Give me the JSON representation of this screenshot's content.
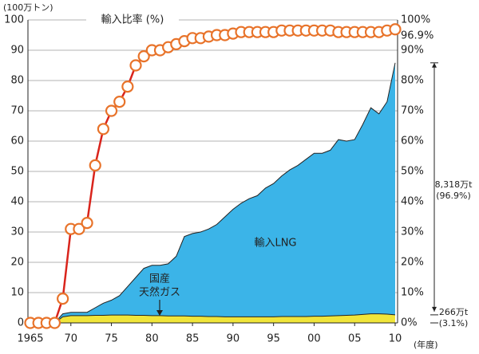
{
  "chart_data": {
    "type": "stacked-area-line",
    "y_unit": "(100万トン)",
    "x_unit": "(年度)",
    "x": [
      1965,
      1966,
      1967,
      1968,
      1969,
      1970,
      1971,
      1972,
      1973,
      1974,
      1975,
      1976,
      1977,
      1978,
      1979,
      1980,
      1981,
      1982,
      1983,
      1984,
      1985,
      1986,
      1987,
      1988,
      1989,
      1990,
      1991,
      1992,
      1993,
      1994,
      1995,
      1996,
      1997,
      1998,
      1999,
      2000,
      2001,
      2002,
      2003,
      2004,
      2005,
      2006,
      2007,
      2008,
      2009,
      2010
    ],
    "series": [
      {
        "name_lines": [
          "国産",
          "天然ガス"
        ],
        "color": "#f0e53a",
        "values": [
          0,
          0,
          0,
          0,
          2.0,
          2.4,
          2.4,
          2.4,
          2.5,
          2.5,
          2.6,
          2.6,
          2.6,
          2.5,
          2.5,
          2.4,
          2.4,
          2.3,
          2.3,
          2.3,
          2.2,
          2.2,
          2.1,
          2.1,
          2.0,
          2.0,
          2.0,
          2.0,
          2.0,
          2.0,
          2.0,
          2.1,
          2.1,
          2.1,
          2.1,
          2.2,
          2.2,
          2.3,
          2.4,
          2.5,
          2.6,
          2.8,
          3.0,
          3.0,
          2.9,
          2.66
        ]
      },
      {
        "name": "輸入LNG",
        "color": "#3bb4e8",
        "values": [
          0,
          0,
          0,
          0,
          1.0,
          1.1,
          1.1,
          1.1,
          2.5,
          4.0,
          4.9,
          6.4,
          9.4,
          12.5,
          15.5,
          16.6,
          16.6,
          17.2,
          19.7,
          26.2,
          27.3,
          27.8,
          28.9,
          30.4,
          33.0,
          35.5,
          37.5,
          39.0,
          40.0,
          42.5,
          44.0,
          46.4,
          48.4,
          49.9,
          51.9,
          53.8,
          53.8,
          54.7,
          58.1,
          57.5,
          57.9,
          62.7,
          68.0,
          66.0,
          70.1,
          83.18
        ]
      },
      {
        "name": "輸入比率 (%)",
        "color": "#d9241c",
        "marker_color": "#e8732a",
        "axis": "y2",
        "values": [
          0,
          0,
          0,
          0,
          8,
          31,
          31,
          33,
          52,
          64,
          70,
          73,
          78,
          85,
          88,
          90,
          90,
          91,
          92,
          93,
          94,
          94,
          94.5,
          95,
          95,
          95.5,
          96,
          96,
          96,
          96,
          96,
          96.5,
          96.5,
          96.5,
          96.5,
          96.5,
          96.5,
          96.5,
          96,
          96,
          96,
          96,
          96,
          96,
          96.5,
          96.9
        ]
      }
    ],
    "annotations": [
      "96.9%",
      "8,318万t",
      "(96.9%)",
      "266万t",
      "(3.1%)"
    ],
    "xlim": [
      1965,
      2010
    ],
    "xticks": [
      1965,
      {
        "value": 1970,
        "label": "70"
      },
      {
        "value": 1975,
        "label": "75"
      },
      {
        "value": 1980,
        "label": "80"
      },
      {
        "value": 1985,
        "label": "85"
      },
      {
        "value": 1990,
        "label": "90"
      },
      {
        "value": 1995,
        "label": "95"
      },
      {
        "value": 2000,
        "label": "00"
      },
      {
        "value": 2005,
        "label": "05"
      },
      {
        "value": 2010,
        "label": "10"
      }
    ],
    "ylim": [
      0,
      100
    ],
    "yticks": [
      0,
      10,
      20,
      30,
      40,
      50,
      60,
      70,
      80,
      90,
      100
    ],
    "y2lim": [
      0,
      100
    ],
    "y2ticks": [
      {
        "value": 0,
        "label": "0%"
      },
      {
        "value": 10,
        "label": "10%"
      },
      {
        "value": 20,
        "label": "20%"
      },
      {
        "value": 30,
        "label": "30%"
      },
      {
        "value": 40,
        "label": "40%"
      },
      {
        "value": 50,
        "label": "50%"
      },
      {
        "value": 60,
        "label": "60%"
      },
      {
        "value": 70,
        "label": "70%"
      },
      {
        "value": 80,
        "label": "80%"
      },
      {
        "value": 90,
        "label": "90%"
      },
      {
        "value": 100,
        "label": "100%"
      }
    ],
    "grid": true
  }
}
